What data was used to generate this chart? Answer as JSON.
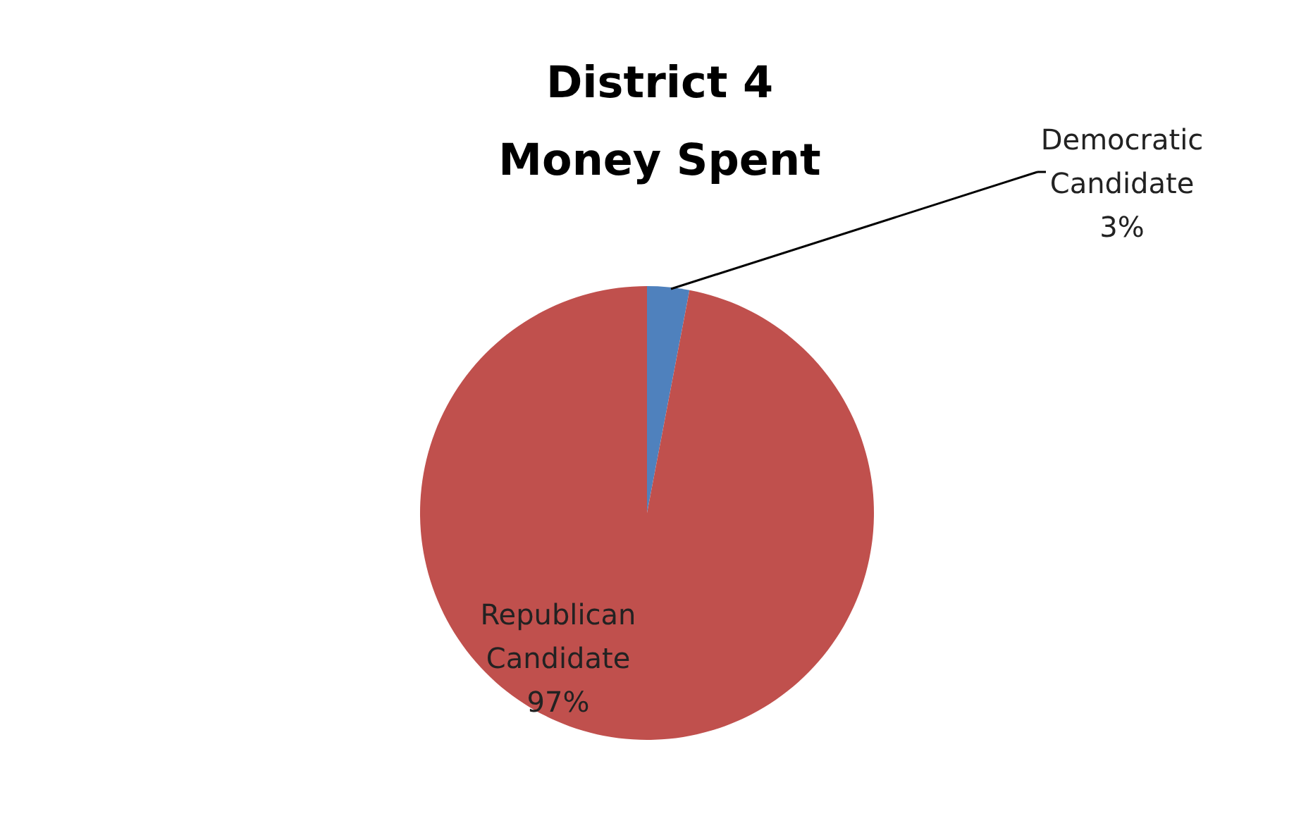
{
  "chart_data": {
    "type": "pie",
    "title": "District 4 Money Spent",
    "categories": [
      "Democratic Candidate",
      "Republican Candidate"
    ],
    "values": [
      3,
      97
    ],
    "colors": [
      "#4f81bd",
      "#c0504d"
    ],
    "value_labels": [
      "3%",
      "97%"
    ]
  }
}
